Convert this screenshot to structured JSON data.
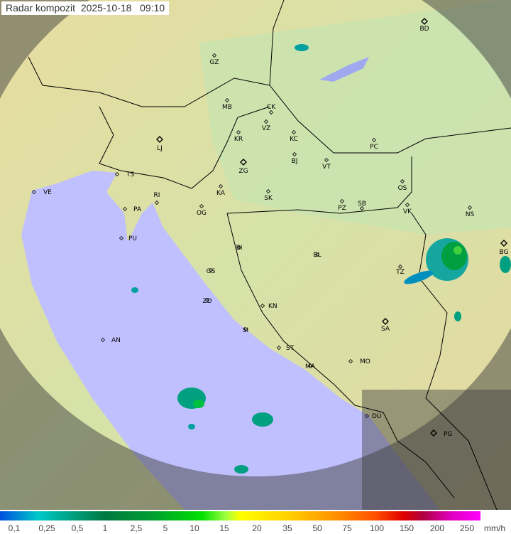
{
  "title": "Radar kompozit  2025-10-18   09:10",
  "legend": {
    "labels": [
      "0,1",
      "0,25",
      "0,5",
      "1",
      "2,5",
      "5",
      "10",
      "15",
      "20",
      "35",
      "50",
      "75",
      "100",
      "150",
      "200",
      "250"
    ],
    "unit": "mm/h"
  },
  "cities": [
    "BD",
    "GZ",
    "MB",
    "CK",
    "VZ",
    "KR",
    "KC",
    "PC",
    "LJ",
    "BJ",
    "VT",
    "ZG",
    "TS",
    "VE",
    "KA",
    "SK",
    "RI",
    "OS",
    "PA",
    "OG",
    "PZ",
    "SB",
    "VK",
    "NS",
    "PU",
    "BG",
    "BI",
    "BL",
    "TZ",
    "GS",
    "ZD",
    "KN",
    "SA",
    "AN",
    "SI",
    "ST",
    "MA",
    "MO",
    "DU",
    "PG"
  ],
  "colors": {
    "land": "#d8e4a8",
    "sea": "#c0c0ff",
    "outside_coverage": "#505050",
    "border": "#000000"
  }
}
